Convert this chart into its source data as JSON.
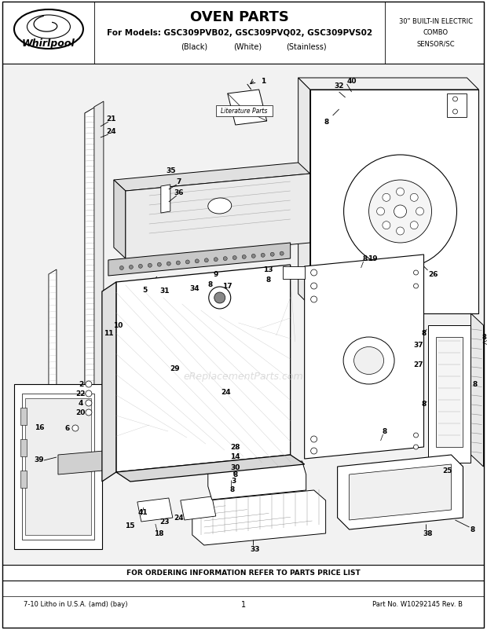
{
  "title": "OVEN PARTS",
  "subtitle1": "For Models: GSC309PVB02, GSC309PVQ02, GSC309PVS02",
  "subtitle2_black": "(Black)",
  "subtitle2_white": "(White)",
  "subtitle2_stainless": "(Stainless)",
  "top_right_line1": "30\" BUILT-IN ELECTRIC",
  "top_right_line2": "COMBO",
  "top_right_line3": "SENSOR/SC",
  "whirlpool_text": "Whirlpool",
  "bottom_left": "7-10 Litho in U.S.A. (amd) (bay)",
  "bottom_center": "1",
  "bottom_right": "Part No. W10292145 Rev. B",
  "footer": "FOR ORDERING INFORMATION REFER TO PARTS PRICE LIST",
  "watermark": "eReplacementParts.com",
  "lit_parts_text": "Literature Parts",
  "bg_color": "#ffffff"
}
